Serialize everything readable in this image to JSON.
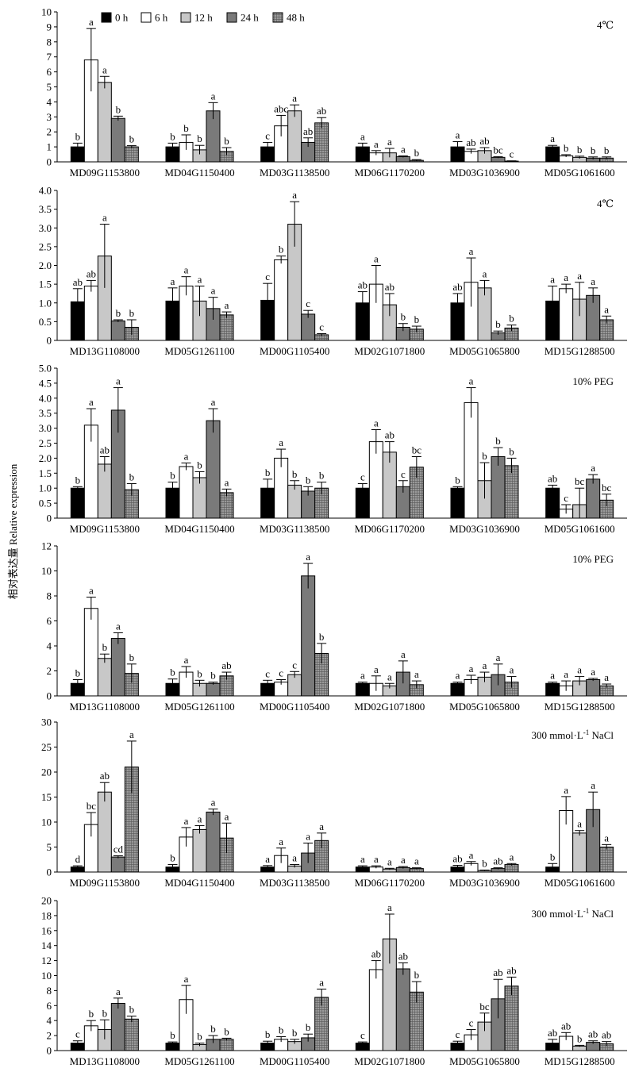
{
  "ylabel": "相对表达量 Relative expression",
  "legend": [
    {
      "label": "0 h",
      "pattern": "black"
    },
    {
      "label": "6 h",
      "pattern": "white"
    },
    {
      "label": "12 h",
      "pattern": "light"
    },
    {
      "label": "24 h",
      "pattern": "dark"
    },
    {
      "label": "48 h",
      "pattern": "hatch"
    }
  ],
  "colors": {
    "black": "#000000",
    "white": "#ffffff",
    "light": "#c8c8c8",
    "dark": "#7a7a7a",
    "hatch": "#d8d8d8"
  },
  "chart_data": [
    {
      "type": "bar",
      "treatment": "4℃",
      "ylim": [
        0,
        10
      ],
      "yticks": [
        0,
        1,
        2,
        3,
        4,
        5,
        6,
        7,
        8,
        9,
        10
      ],
      "categories": [
        "MD09G1153800",
        "MD04G1150400",
        "MD03G1138500",
        "MD06G1170200",
        "MD03G1036900",
        "MD05G1061600"
      ],
      "values": [
        [
          1,
          6.8,
          5.3,
          2.9,
          1.0
        ],
        [
          1,
          1.3,
          0.8,
          3.4,
          0.7
        ],
        [
          1,
          2.4,
          3.4,
          1.3,
          2.6
        ],
        [
          1,
          0.6,
          0.6,
          0.35,
          0.1
        ],
        [
          1,
          0.7,
          0.75,
          0.3,
          0.05
        ],
        [
          1,
          0.4,
          0.3,
          0.25,
          0.25
        ]
      ],
      "errors": [
        [
          0.25,
          2.1,
          0.4,
          0.15,
          0.08
        ],
        [
          0.25,
          0.5,
          0.3,
          0.55,
          0.25
        ],
        [
          0.3,
          0.7,
          0.4,
          0.3,
          0.35
        ],
        [
          0.25,
          0.15,
          0.3,
          0.05,
          0.05
        ],
        [
          0.35,
          0.15,
          0.2,
          0.05,
          0.02
        ],
        [
          0.1,
          0.08,
          0.08,
          0.08,
          0.08
        ]
      ],
      "labels": [
        [
          "b",
          "a",
          "a",
          "b",
          "b"
        ],
        [
          "b",
          "b",
          "b",
          "a",
          "b"
        ],
        [
          "c",
          "abc",
          "a",
          "ab",
          "ab"
        ],
        [
          "a",
          "a",
          "a",
          "a",
          "b"
        ],
        [
          "a",
          "ab",
          "ab",
          "bc",
          "c"
        ],
        [
          "a",
          "b",
          "b",
          "b",
          "b"
        ]
      ]
    },
    {
      "type": "bar",
      "treatment": "4℃",
      "ylim": [
        0,
        4.0
      ],
      "yticks": [
        "0",
        "0.5",
        "1.0",
        "1.5",
        "2.0",
        "2.5",
        "3.0",
        "3.5",
        "4.0"
      ],
      "categories": [
        "MD13G1108000",
        "MD05G1261100",
        "MD00G1105400",
        "MD02G1071800",
        "MD05G1065800",
        "MD15G1288500"
      ],
      "values": [
        [
          1.03,
          1.45,
          2.25,
          0.52,
          0.35
        ],
        [
          1.05,
          1.45,
          1.05,
          0.85,
          0.68
        ],
        [
          1.07,
          2.15,
          3.1,
          0.7,
          0.15
        ],
        [
          1.0,
          1.5,
          0.95,
          0.35,
          0.3
        ],
        [
          1.0,
          1.55,
          1.4,
          0.2,
          0.33
        ],
        [
          1.05,
          1.38,
          1.1,
          1.2,
          0.55
        ]
      ],
      "errors": [
        [
          0.35,
          0.15,
          0.85,
          0.03,
          0.2
        ],
        [
          0.35,
          0.25,
          0.4,
          0.3,
          0.08
        ],
        [
          0.45,
          0.1,
          0.6,
          0.1,
          0.03
        ],
        [
          0.3,
          0.5,
          0.3,
          0.1,
          0.08
        ],
        [
          0.25,
          0.65,
          0.2,
          0.05,
          0.08
        ],
        [
          0.4,
          0.12,
          0.45,
          0.2,
          0.1
        ]
      ],
      "labels": [
        [
          "ab",
          "ab",
          "a",
          "b",
          "b"
        ],
        [
          "a",
          "a",
          "a",
          "a",
          "a"
        ],
        [
          "c",
          "b",
          "a",
          "c",
          "c"
        ],
        [
          "ab",
          "a",
          "ab",
          "b",
          "b"
        ],
        [
          "ab",
          "a",
          "a",
          "b",
          "b"
        ],
        [
          "a",
          "a",
          "a",
          "a",
          "a"
        ]
      ]
    },
    {
      "type": "bar",
      "treatment": "10% PEG",
      "ylim": [
        0,
        5.0
      ],
      "yticks": [
        "0",
        "0.5",
        "1.0",
        "1.5",
        "2.0",
        "2.5",
        "3.0",
        "3.5",
        "4.0",
        "4.5",
        "5.0"
      ],
      "categories": [
        "MD09G1153800",
        "MD04G1150400",
        "MD03G1138500",
        "MD06G1170200",
        "MD03G1036900",
        "MD05G1061600"
      ],
      "values": [
        [
          1.0,
          3.1,
          1.8,
          3.6,
          0.95
        ],
        [
          1.0,
          1.72,
          1.35,
          3.25,
          0.85
        ],
        [
          1.0,
          2.0,
          1.1,
          0.9,
          1.0
        ],
        [
          1.0,
          2.55,
          2.2,
          1.05,
          1.7
        ],
        [
          1.0,
          3.85,
          1.25,
          2.05,
          1.75
        ],
        [
          1.0,
          0.3,
          0.45,
          1.3,
          0.6
        ]
      ],
      "errors": [
        [
          0.05,
          0.55,
          0.25,
          0.75,
          0.2
        ],
        [
          0.2,
          0.12,
          0.2,
          0.4,
          0.12
        ],
        [
          0.3,
          0.3,
          0.15,
          0.15,
          0.2
        ],
        [
          0.15,
          0.4,
          0.35,
          0.2,
          0.35
        ],
        [
          0.05,
          0.5,
          0.6,
          0.3,
          0.25
        ],
        [
          0.1,
          0.15,
          0.55,
          0.15,
          0.2
        ]
      ],
      "labels": [
        [
          "b",
          "a",
          "ab",
          "a",
          "b"
        ],
        [
          "b",
          "a",
          "b",
          "a",
          "a"
        ],
        [
          "b",
          "a",
          "b",
          "b",
          "b"
        ],
        [
          "c",
          "a",
          "ab",
          "c",
          "bc"
        ],
        [
          "b",
          "a",
          "b",
          "b",
          "b"
        ],
        [
          "ab",
          "c",
          "bc",
          "a",
          "bc"
        ]
      ]
    },
    {
      "type": "bar",
      "treatment": "10% PEG",
      "ylim": [
        0,
        12
      ],
      "yticks": [
        0,
        2,
        4,
        6,
        8,
        10,
        12
      ],
      "categories": [
        "MD13G1108000",
        "MD05G1261100",
        "MD00G1105400",
        "MD02G1071800",
        "MD05G1065800",
        "MD15G1288500"
      ],
      "values": [
        [
          1.0,
          7.0,
          3.0,
          4.6,
          1.8
        ],
        [
          1.0,
          1.9,
          1.0,
          1.0,
          1.6
        ],
        [
          1.0,
          1.1,
          1.7,
          9.6,
          3.4
        ],
        [
          1.0,
          1.0,
          0.8,
          1.9,
          0.9
        ],
        [
          1.0,
          1.3,
          1.5,
          1.7,
          1.1
        ],
        [
          1.0,
          0.8,
          1.2,
          1.3,
          0.8
        ]
      ],
      "errors": [
        [
          0.3,
          0.9,
          0.35,
          0.45,
          0.75
        ],
        [
          0.35,
          0.45,
          0.25,
          0.1,
          0.3
        ],
        [
          0.25,
          0.2,
          0.25,
          1.0,
          0.8
        ],
        [
          0.1,
          0.6,
          0.2,
          0.9,
          0.3
        ],
        [
          0.1,
          0.35,
          0.4,
          0.85,
          0.45
        ],
        [
          0.1,
          0.4,
          0.35,
          0.1,
          0.15
        ]
      ],
      "labels": [
        [
          "b",
          "a",
          "b",
          "a",
          "b"
        ],
        [
          "b",
          "a",
          "b",
          "b",
          "ab"
        ],
        [
          "c",
          "c",
          "c",
          "a",
          "b"
        ],
        [
          "a",
          "a",
          "a",
          "a",
          "a"
        ],
        [
          "a",
          "a",
          "a",
          "a",
          "a"
        ],
        [
          "a",
          "a",
          "a",
          "a",
          "a"
        ]
      ]
    },
    {
      "type": "bar",
      "treatment": "300 mmol·L",
      "treatment_sup": "-1",
      "treatment_end": " NaCl",
      "ylim": [
        0,
        30
      ],
      "yticks": [
        0,
        5,
        10,
        15,
        20,
        25,
        30
      ],
      "categories": [
        "MD09G1153800",
        "MD04G1150400",
        "MD03G1138500",
        "MD06G1170200",
        "MD03G1036900",
        "MD05G1061600"
      ],
      "values": [
        [
          1.0,
          9.5,
          16.0,
          3.0,
          21.0
        ],
        [
          1.0,
          7.0,
          8.5,
          12.0,
          6.8
        ],
        [
          1.0,
          3.3,
          1.2,
          3.8,
          6.3
        ],
        [
          1.0,
          1.0,
          0.6,
          0.9,
          0.7
        ],
        [
          1.0,
          1.7,
          0.3,
          0.7,
          1.5
        ],
        [
          1.0,
          12.3,
          7.8,
          12.5,
          5.0
        ]
      ],
      "errors": [
        [
          0.25,
          2.4,
          1.9,
          0.25,
          5.2
        ],
        [
          0.5,
          1.9,
          0.8,
          0.6,
          3.0
        ],
        [
          0.3,
          1.5,
          0.3,
          2.0,
          1.5
        ],
        [
          0.25,
          0.25,
          0.15,
          0.2,
          0.15
        ],
        [
          0.35,
          0.4,
          0.1,
          0.15,
          0.2
        ],
        [
          0.7,
          2.8,
          0.5,
          3.5,
          0.5
        ]
      ],
      "labels": [
        [
          "d",
          "bc",
          "ab",
          "cd",
          "a"
        ],
        [
          "b",
          "a",
          "a",
          "a",
          "a"
        ],
        [
          "a",
          "a",
          "a",
          "a",
          "a"
        ],
        [
          "a",
          "a",
          "a",
          "a",
          "a"
        ],
        [
          "ab",
          "a",
          "b",
          "ab",
          "a"
        ],
        [
          "b",
          "a",
          "a",
          "a",
          "a"
        ]
      ]
    },
    {
      "type": "bar",
      "treatment": "300 mmol·L",
      "treatment_sup": "-1",
      "treatment_end": " NaCl",
      "ylim": [
        0,
        20
      ],
      "yticks": [
        0,
        2,
        4,
        6,
        8,
        10,
        12,
        14,
        16,
        18,
        20
      ],
      "categories": [
        "MD13G1108000",
        "MD05G1261100",
        "MD00G1105400",
        "MD02G1071800",
        "MD05G1065800",
        "MD15G1288500"
      ],
      "values": [
        [
          1.0,
          3.3,
          2.8,
          6.3,
          4.2
        ],
        [
          1.0,
          6.8,
          0.8,
          1.5,
          1.5
        ],
        [
          1.0,
          1.5,
          1.2,
          1.7,
          7.1
        ],
        [
          1.0,
          10.8,
          14.9,
          10.9,
          7.8
        ],
        [
          1.0,
          2.1,
          3.8,
          6.9,
          8.6
        ],
        [
          1.0,
          1.9,
          0.6,
          1.1,
          0.9
        ]
      ],
      "errors": [
        [
          0.3,
          0.7,
          1.3,
          0.7,
          0.4
        ],
        [
          0.15,
          1.9,
          0.2,
          0.5,
          0.15
        ],
        [
          0.25,
          0.35,
          0.3,
          0.5,
          1.1
        ],
        [
          0.15,
          1.2,
          3.3,
          0.8,
          1.4
        ],
        [
          0.25,
          0.7,
          1.2,
          2.6,
          1.2
        ],
        [
          0.5,
          0.5,
          0.1,
          0.2,
          0.3
        ]
      ],
      "labels": [
        [
          "c",
          "b",
          "b",
          "a",
          "b"
        ],
        [
          "b",
          "a",
          "b",
          "b",
          "b"
        ],
        [
          "b",
          "b",
          "b",
          "b",
          "a"
        ],
        [
          "c",
          "ab",
          "a",
          "ab",
          "b"
        ],
        [
          "c",
          "c",
          "bc",
          "ab",
          "ab"
        ],
        [
          "ab",
          "ab",
          "b",
          "ab",
          "ab"
        ]
      ]
    }
  ]
}
